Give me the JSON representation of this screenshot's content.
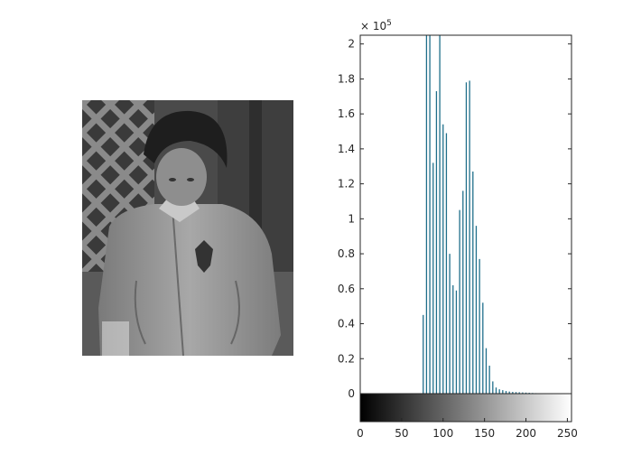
{
  "figure": {
    "photo_description_icon": "grayscale-photo-of-child-in-jacket"
  },
  "colors": {
    "bar": "#1f6f8b",
    "axis": "#262626",
    "background": "#ffffff"
  },
  "chart_data": {
    "type": "bar",
    "title": "",
    "xlabel": "",
    "ylabel": "",
    "xlim": [
      0,
      255
    ],
    "ylim": [
      0,
      205000
    ],
    "x_ticks": [
      0,
      50,
      100,
      150,
      200,
      250
    ],
    "x_tick_labels": [
      "0",
      "50",
      "100",
      "150",
      "200",
      "250"
    ],
    "y_ticks": [
      0,
      20000,
      40000,
      60000,
      80000,
      100000,
      120000,
      140000,
      160000,
      180000,
      200000
    ],
    "y_tick_labels": [
      "0",
      "0.2",
      "0.4",
      "0.6",
      "0.8",
      "1",
      "1.2",
      "1.4",
      "1.6",
      "1.8",
      "2"
    ],
    "y_exponent_label": "× 10",
    "y_exponent_power": "5",
    "colorbar": "grayscale 0-255",
    "bins": [
      76,
      80,
      84,
      88,
      92,
      96,
      100,
      104,
      108,
      112,
      116,
      120,
      124,
      128,
      132,
      136,
      140,
      144,
      148,
      152,
      156,
      160,
      164,
      168,
      172,
      176,
      180,
      184,
      188,
      192,
      196,
      200,
      204,
      208,
      212
    ],
    "counts": [
      45000,
      205000,
      205000,
      132000,
      173000,
      205000,
      154000,
      149000,
      80000,
      62000,
      59000,
      105000,
      116000,
      178000,
      179000,
      127000,
      96000,
      77000,
      52000,
      26000,
      16000,
      7000,
      3500,
      2500,
      2000,
      1500,
      1200,
      1000,
      900,
      800,
      700,
      600,
      500,
      400,
      300
    ]
  }
}
